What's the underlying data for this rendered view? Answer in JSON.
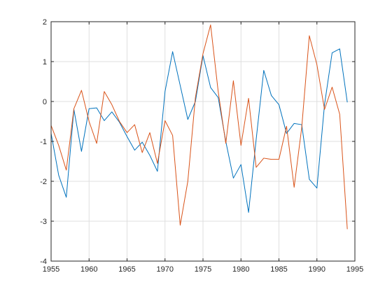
{
  "chart_data": {
    "type": "line",
    "title": "",
    "xlabel": "",
    "ylabel": "",
    "xlim": [
      1955,
      1995
    ],
    "ylim": [
      -4,
      2
    ],
    "xticks": [
      1955,
      1960,
      1965,
      1970,
      1975,
      1980,
      1985,
      1990,
      1995
    ],
    "yticks": [
      -4,
      -3,
      -2,
      -1,
      0,
      1,
      2
    ],
    "xtick_labels": [
      "1955",
      "1960",
      "1965",
      "1970",
      "1975",
      "1980",
      "1985",
      "1990",
      "1995"
    ],
    "ytick_labels": [
      "-4",
      "-3",
      "-2",
      "-1",
      "0",
      "1",
      "2"
    ],
    "grid": true,
    "x": [
      1955,
      1956,
      1957,
      1958,
      1959,
      1960,
      1961,
      1962,
      1963,
      1964,
      1965,
      1966,
      1967,
      1968,
      1969,
      1970,
      1971,
      1972,
      1973,
      1974,
      1975,
      1976,
      1977,
      1978,
      1979,
      1980,
      1981,
      1982,
      1983,
      1984,
      1985,
      1986,
      1987,
      1988,
      1989,
      1990,
      1991,
      1992,
      1993,
      1994
    ],
    "series": [
      {
        "color": "#0072BD",
        "values": [
          -0.8,
          -1.85,
          -2.4,
          -0.2,
          -1.25,
          -0.18,
          -0.16,
          -0.48,
          -0.26,
          -0.52,
          -0.88,
          -1.22,
          -1.02,
          -1.35,
          -1.75,
          0.25,
          1.25,
          0.4,
          -0.45,
          0.0,
          1.15,
          0.35,
          0.1,
          -1.0,
          -1.92,
          -1.58,
          -2.78,
          -0.95,
          0.78,
          0.15,
          -0.08,
          -0.8,
          -0.55,
          -0.58,
          -1.95,
          -2.17,
          -0.08,
          1.22,
          1.32,
          -0.02
        ]
      },
      {
        "color": "#D95319",
        "values": [
          -0.6,
          -1.1,
          -1.72,
          -0.18,
          0.28,
          -0.5,
          -1.05,
          0.25,
          -0.08,
          -0.5,
          -0.78,
          -0.58,
          -1.28,
          -0.78,
          -1.55,
          -0.48,
          -0.85,
          -3.1,
          -2.0,
          0.1,
          1.2,
          1.92,
          0.25,
          -1.05,
          0.52,
          -1.1,
          0.08,
          -1.65,
          -1.42,
          -1.45,
          -1.45,
          -0.62,
          -2.15,
          -0.65,
          1.65,
          0.92,
          -0.2,
          0.36,
          -0.32,
          -3.2
        ]
      }
    ]
  }
}
